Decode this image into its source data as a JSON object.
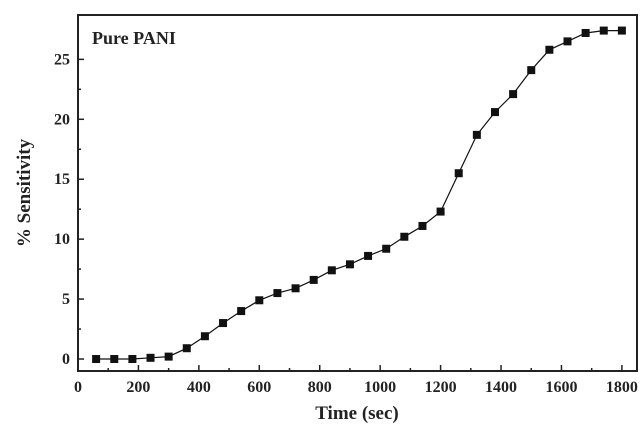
{
  "chart_data": {
    "type": "line",
    "annotation": "Pure PANI",
    "xlabel": "Time (sec)",
    "ylabel": "% Sensitivity",
    "xlim": [
      0,
      1850
    ],
    "ylim": [
      -1,
      28.7
    ],
    "x_ticks": [
      0,
      200,
      400,
      600,
      800,
      1000,
      1200,
      1400,
      1600,
      1800
    ],
    "y_ticks": [
      0,
      5,
      10,
      15,
      20,
      25
    ],
    "grid": false,
    "legend": "none",
    "marker": "square",
    "series": [
      {
        "color": "#111111",
        "x": [
          60,
          120,
          180,
          240,
          300,
          360,
          420,
          480,
          540,
          600,
          660,
          720,
          780,
          840,
          900,
          960,
          1020,
          1080,
          1140,
          1200,
          1260,
          1320,
          1380,
          1440,
          1500,
          1560,
          1620,
          1680,
          1740,
          1800
        ],
        "y": [
          0,
          0,
          0,
          0.1,
          0.2,
          0.9,
          1.9,
          3.0,
          4.0,
          4.9,
          5.5,
          5.9,
          6.6,
          7.4,
          7.9,
          8.6,
          9.2,
          10.2,
          11.1,
          12.3,
          15.5,
          18.7,
          20.6,
          22.1,
          24.1,
          25.8,
          26.5,
          27.2,
          27.4,
          27.4
        ]
      }
    ]
  }
}
